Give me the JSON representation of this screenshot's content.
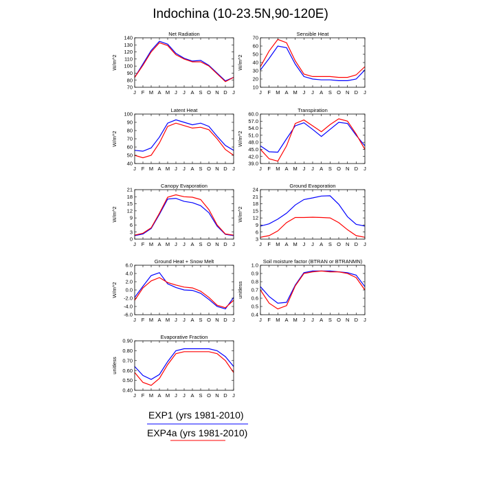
{
  "figure": {
    "title": "Indochina (10-23.5N,90-120E)"
  },
  "colors": {
    "exp1": "#0000ff",
    "exp4a": "#ff0000"
  },
  "legend": {
    "items": [
      {
        "label": "EXP1 (yrs 1981-2010)",
        "color": "#0000ff"
      },
      {
        "label": "EXP4a (yrs 1981-2010)",
        "color": "#ff0000"
      }
    ]
  },
  "chart_data": [
    {
      "type": "line",
      "title": "Net Radiation",
      "ylabel": "W/m^2",
      "categories": [
        "J",
        "F",
        "M",
        "A",
        "M",
        "J",
        "J",
        "A",
        "S",
        "O",
        "N",
        "D",
        "J"
      ],
      "ylim": [
        70,
        140
      ],
      "yticks": [
        "70",
        "80",
        "90",
        "100",
        "110",
        "120",
        "130",
        "140"
      ],
      "series": [
        {
          "name": "EXP1 (yrs 1981-2010)",
          "values": [
            84,
            103,
            122,
            135,
            131,
            118,
            111,
            107,
            108,
            101,
            90,
            79,
            84
          ]
        },
        {
          "name": "EXP4a (yrs 1981-2010)",
          "values": [
            84,
            101,
            120,
            133,
            129,
            116,
            110,
            106,
            106,
            100,
            89,
            78,
            84
          ]
        }
      ]
    },
    {
      "type": "line",
      "title": "Sensible Heat",
      "ylabel": "W/m^2",
      "categories": [
        "J",
        "F",
        "M",
        "A",
        "M",
        "J",
        "J",
        "A",
        "S",
        "O",
        "N",
        "D",
        "J"
      ],
      "ylim": [
        10,
        70
      ],
      "yticks": [
        "10",
        "20",
        "30",
        "40",
        "50",
        "60",
        "70"
      ],
      "series": [
        {
          "name": "EXP1 (yrs 1981-2010)",
          "values": [
            31,
            45,
            60,
            58,
            38,
            23,
            20,
            19,
            19,
            18,
            18,
            20,
            31
          ]
        },
        {
          "name": "EXP4a (yrs 1981-2010)",
          "values": [
            35,
            54,
            68,
            64,
            42,
            26,
            23,
            23,
            23,
            22,
            22,
            25,
            35
          ]
        }
      ]
    },
    {
      "type": "line",
      "title": "Latent Heat",
      "ylabel": "W/m^2",
      "categories": [
        "J",
        "F",
        "M",
        "A",
        "M",
        "J",
        "J",
        "A",
        "S",
        "O",
        "N",
        "D",
        "J"
      ],
      "ylim": [
        40,
        100
      ],
      "yticks": [
        "40",
        "50",
        "60",
        "70",
        "80",
        "90",
        "100"
      ],
      "series": [
        {
          "name": "EXP1 (yrs 1981-2010)",
          "values": [
            56,
            55,
            59,
            72,
            89,
            93,
            90,
            87,
            89,
            85,
            73,
            62,
            56
          ]
        },
        {
          "name": "EXP4a (yrs 1981-2010)",
          "values": [
            50,
            47,
            50,
            65,
            85,
            89,
            86,
            83,
            84,
            81,
            70,
            57,
            50
          ]
        }
      ]
    },
    {
      "type": "line",
      "title": "Transpiration",
      "ylabel": "W/m^2",
      "categories": [
        "J",
        "F",
        "M",
        "A",
        "M",
        "J",
        "J",
        "A",
        "S",
        "O",
        "N",
        "D",
        "J"
      ],
      "ylim": [
        39,
        60
      ],
      "yticks": [
        "39.0",
        "42.0",
        "45.0",
        "48.0",
        "51.0",
        "54.0",
        "57.0",
        "60.0"
      ],
      "series": [
        {
          "name": "EXP1 (yrs 1981-2010)",
          "values": [
            46.5,
            44.0,
            43.8,
            49.5,
            55.0,
            56.3,
            53.5,
            50.5,
            53.5,
            56.5,
            56.0,
            51.0,
            46.5
          ]
        },
        {
          "name": "EXP4a (yrs 1981-2010)",
          "values": [
            45.0,
            41.0,
            40.0,
            46.5,
            56.0,
            57.5,
            55.0,
            52.5,
            55.5,
            58.0,
            57.0,
            51.5,
            45.0
          ]
        }
      ]
    },
    {
      "type": "line",
      "title": "Canopy Evaporation",
      "ylabel": "W/m^2",
      "categories": [
        "J",
        "F",
        "M",
        "A",
        "M",
        "J",
        "J",
        "A",
        "S",
        "O",
        "N",
        "D",
        "J"
      ],
      "ylim": [
        0,
        21
      ],
      "yticks": [
        "0",
        "3",
        "6",
        "9",
        "12",
        "15",
        "18",
        "21"
      ],
      "series": [
        {
          "name": "EXP1 (yrs 1981-2010)",
          "values": [
            1.5,
            2.2,
            4.5,
            10.5,
            17.0,
            17.3,
            16.0,
            15.5,
            14.2,
            11.2,
            5.5,
            2.0,
            1.5
          ]
        },
        {
          "name": "EXP4a (yrs 1981-2010)",
          "values": [
            1.7,
            2.5,
            4.8,
            11.0,
            17.8,
            18.8,
            18.0,
            17.8,
            16.8,
            12.5,
            6.0,
            2.2,
            1.7
          ]
        }
      ]
    },
    {
      "type": "line",
      "title": "Ground Evaporation",
      "ylabel": "W/m^2",
      "categories": [
        "J",
        "F",
        "M",
        "A",
        "M",
        "J",
        "J",
        "A",
        "S",
        "O",
        "N",
        "D",
        "J"
      ],
      "ylim": [
        3,
        24
      ],
      "yticks": [
        "3",
        "6",
        "9",
        "12",
        "15",
        "18",
        "21",
        "24"
      ],
      "series": [
        {
          "name": "EXP1 (yrs 1981-2010)",
          "values": [
            8.5,
            9.5,
            11.5,
            14.0,
            17.5,
            19.8,
            20.5,
            21.3,
            21.4,
            17.8,
            12.5,
            9.3,
            8.5
          ]
        },
        {
          "name": "EXP4a (yrs 1981-2010)",
          "values": [
            3.8,
            4.5,
            6.5,
            10.0,
            12.2,
            12.2,
            12.3,
            12.2,
            12.0,
            10.0,
            7.0,
            4.5,
            3.8
          ]
        }
      ]
    },
    {
      "type": "line",
      "title": "Ground Heat + Snow Melt",
      "ylabel": "W/m^2",
      "categories": [
        "J",
        "F",
        "M",
        "A",
        "M",
        "J",
        "J",
        "A",
        "S",
        "O",
        "N",
        "D",
        "J"
      ],
      "ylim": [
        -6,
        6
      ],
      "yticks": [
        "-6.0",
        "-4.0",
        "-2.0",
        "0.0",
        "2.0",
        "4.0",
        "6.0"
      ],
      "series": [
        {
          "name": "EXP1 (yrs 1981-2010)",
          "values": [
            -1.8,
            0.9,
            3.5,
            4.2,
            1.5,
            0.6,
            0.0,
            -0.1,
            -0.8,
            -2.3,
            -4.0,
            -4.6,
            -1.8
          ]
        },
        {
          "name": "EXP4a (yrs 1981-2010)",
          "values": [
            -2.5,
            0.5,
            2.2,
            3.0,
            1.8,
            1.2,
            0.7,
            0.5,
            -0.3,
            -1.8,
            -3.7,
            -4.3,
            -2.5
          ]
        }
      ]
    },
    {
      "type": "line",
      "title": "Soil moisture factor (BTRAN or BTRANMN)",
      "ylabel": "unitless",
      "categories": [
        "J",
        "F",
        "M",
        "A",
        "M",
        "J",
        "J",
        "A",
        "S",
        "O",
        "N",
        "D",
        "J"
      ],
      "ylim": [
        0.4,
        1.0
      ],
      "yticks": [
        "0.4",
        "0.5",
        "0.6",
        "0.7",
        "0.8",
        "0.9",
        "1.0"
      ],
      "series": [
        {
          "name": "EXP1 (yrs 1981-2010)",
          "values": [
            0.74,
            0.62,
            0.54,
            0.55,
            0.76,
            0.91,
            0.93,
            0.93,
            0.93,
            0.92,
            0.91,
            0.88,
            0.74
          ]
        },
        {
          "name": "EXP4a (yrs 1981-2010)",
          "values": [
            0.7,
            0.54,
            0.47,
            0.51,
            0.75,
            0.9,
            0.92,
            0.93,
            0.92,
            0.92,
            0.9,
            0.85,
            0.7
          ]
        }
      ]
    },
    {
      "type": "line",
      "title": "Evaporative Fraction",
      "ylabel": "unitless",
      "categories": [
        "J",
        "F",
        "M",
        "A",
        "M",
        "J",
        "J",
        "A",
        "S",
        "O",
        "N",
        "D",
        "J"
      ],
      "ylim": [
        0.4,
        0.9
      ],
      "yticks": [
        "0.40",
        "0.50",
        "0.60",
        "0.70",
        "0.80",
        "0.90"
      ],
      "series": [
        {
          "name": "EXP1 (yrs 1981-2010)",
          "values": [
            0.64,
            0.55,
            0.51,
            0.56,
            0.69,
            0.8,
            0.82,
            0.82,
            0.82,
            0.82,
            0.8,
            0.74,
            0.64
          ]
        },
        {
          "name": "EXP4a (yrs 1981-2010)",
          "values": [
            0.58,
            0.48,
            0.45,
            0.52,
            0.66,
            0.77,
            0.79,
            0.79,
            0.79,
            0.79,
            0.77,
            0.7,
            0.58
          ]
        }
      ]
    }
  ]
}
